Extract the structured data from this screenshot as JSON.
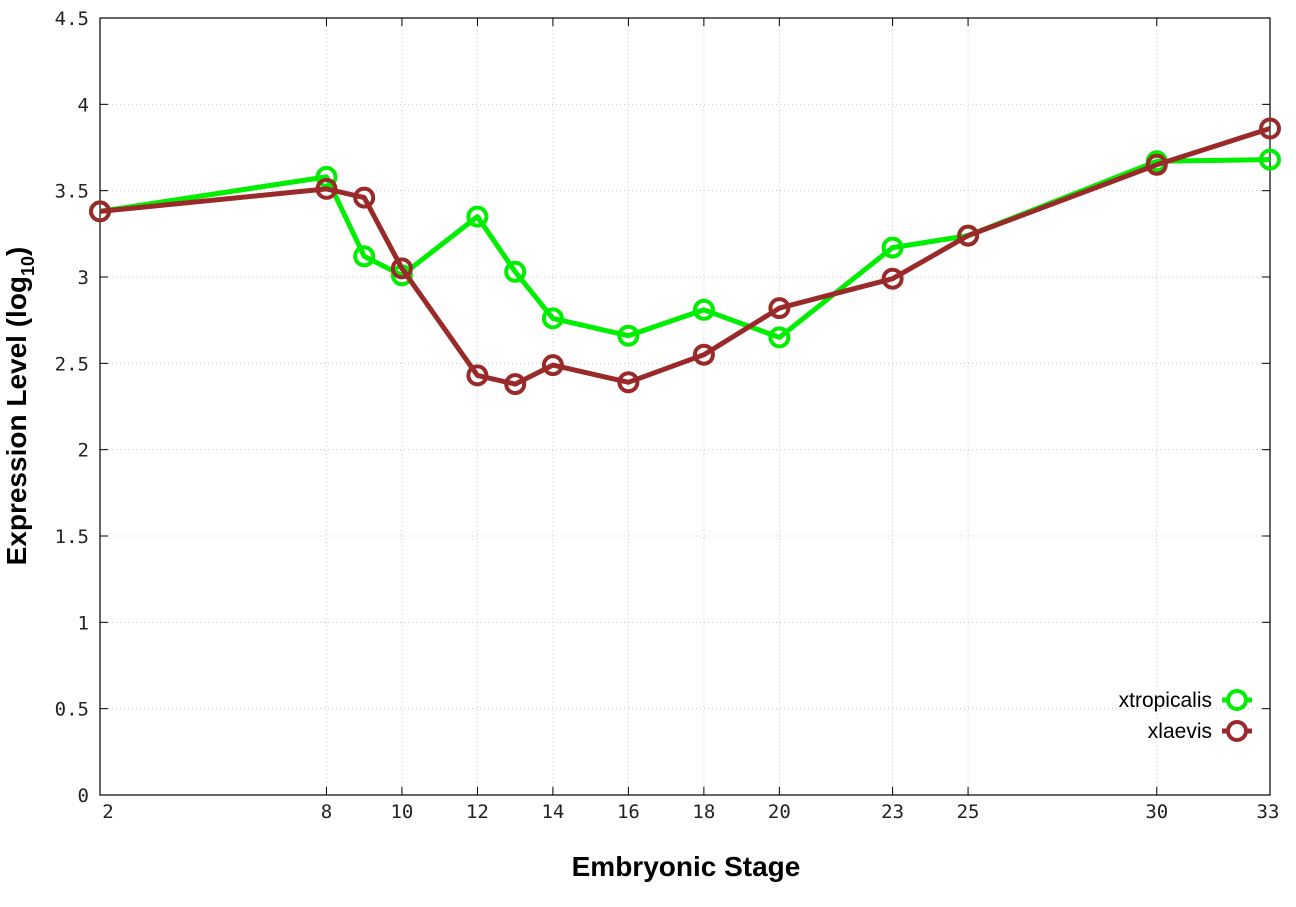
{
  "chart_data": {
    "type": "line",
    "title": "",
    "xlabel": "Embryonic Stage",
    "ylabel": "Expression Level (log",
    "ylabel_subscript": "10",
    "ylabel_suffix": ")",
    "xlim": [
      2,
      33
    ],
    "ylim": [
      0,
      4.5
    ],
    "x_ticks": [
      2,
      8,
      10,
      12,
      14,
      16,
      18,
      20,
      23,
      25,
      30,
      33
    ],
    "x_tick_labels": [
      "2",
      "8",
      "10",
      "12",
      "14",
      "16",
      "18",
      "20",
      "23",
      "25",
      "30",
      "33"
    ],
    "y_ticks": [
      0,
      0.5,
      1,
      1.5,
      2,
      2.5,
      3,
      3.5,
      4,
      4.5
    ],
    "y_tick_labels": [
      "0",
      "0.5",
      "1",
      "1.5",
      "2",
      "2.5",
      "3",
      "3.5",
      "4",
      "4.5"
    ],
    "grid": true,
    "legend_position": "bottom-right",
    "series": [
      {
        "name": "xtropicalis",
        "color": "#00ee00",
        "marker": "open-circle",
        "x": [
          2,
          8,
          9,
          10,
          12,
          13,
          14,
          16,
          18,
          20,
          23,
          25,
          30,
          33
        ],
        "y": [
          3.38,
          3.58,
          3.12,
          3.01,
          3.35,
          3.03,
          2.76,
          2.66,
          2.81,
          2.65,
          3.17,
          3.24,
          3.67,
          3.68
        ]
      },
      {
        "name": "xlaevis",
        "color": "#9a2a2a",
        "marker": "open-circle",
        "x": [
          2,
          8,
          9,
          10,
          12,
          13,
          14,
          16,
          18,
          20,
          23,
          25,
          30,
          33
        ],
        "y": [
          3.38,
          3.51,
          3.46,
          3.05,
          2.43,
          2.38,
          2.49,
          2.39,
          2.55,
          2.82,
          2.99,
          3.24,
          3.65,
          3.86
        ]
      }
    ]
  }
}
